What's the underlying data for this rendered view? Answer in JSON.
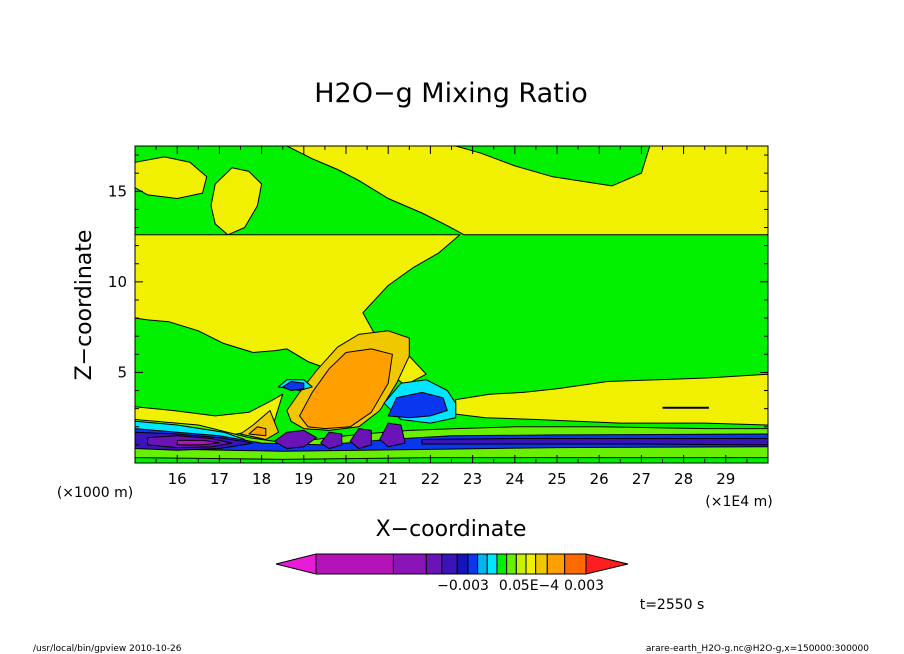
{
  "chart_data": {
    "type": "heatmap",
    "title": "H2O−g Mixing Ratio",
    "xlabel": "X−coordinate",
    "ylabel": "Z−coordinate",
    "x_unit_note": "(×1E4 m)",
    "y_unit_note": "(×1000 m)",
    "x_ticks": [
      16,
      17,
      18,
      19,
      20,
      21,
      22,
      23,
      24,
      25,
      26,
      27,
      28,
      29
    ],
    "y_ticks": [
      5,
      10,
      15
    ],
    "xlim": [
      15.0,
      30.0
    ],
    "ylim": [
      0.0,
      17.5
    ],
    "regions": [
      {
        "name": "background",
        "level": "green",
        "poly": [
          [
            15,
            0
          ],
          [
            30,
            0
          ],
          [
            30,
            17.5
          ],
          [
            15,
            17.5
          ]
        ]
      },
      {
        "name": "upper-left-yellow",
        "level": "yellow",
        "poly": [
          [
            15,
            16.6
          ],
          [
            15.7,
            16.9
          ],
          [
            16.3,
            16.6
          ],
          [
            16.7,
            15.8
          ],
          [
            16.6,
            14.9
          ],
          [
            16,
            14.6
          ],
          [
            15.3,
            14.8
          ],
          [
            15,
            15.2
          ]
        ]
      },
      {
        "name": "top-yellow-plume",
        "level": "yellow",
        "poly": [
          [
            18.6,
            17.5
          ],
          [
            19.2,
            16.8
          ],
          [
            19.8,
            16.2
          ],
          [
            20.3,
            15.6
          ],
          [
            21.0,
            14.6
          ],
          [
            21.8,
            13.8
          ],
          [
            22.4,
            13.1
          ],
          [
            22.8,
            12.6
          ],
          [
            30,
            12.6
          ],
          [
            30,
            17.5
          ],
          [
            27.2,
            17.5
          ],
          [
            27.0,
            16.0
          ],
          [
            26.3,
            15.3
          ],
          [
            24.9,
            15.8
          ],
          [
            24.0,
            16.4
          ],
          [
            23.2,
            17.1
          ],
          [
            22.6,
            17.5
          ]
        ]
      },
      {
        "name": "upper-yellow-blob",
        "level": "yellow",
        "poly": [
          [
            17.2,
            12.6
          ],
          [
            17.6,
            13.0
          ],
          [
            17.9,
            14.2
          ],
          [
            18.0,
            15.4
          ],
          [
            17.7,
            16.1
          ],
          [
            17.3,
            16.3
          ],
          [
            16.9,
            15.4
          ],
          [
            16.8,
            14.2
          ],
          [
            16.9,
            13.2
          ]
        ]
      },
      {
        "name": "main-yellow-band",
        "level": "yellow",
        "poly": [
          [
            15,
            12.6
          ],
          [
            22.7,
            12.6
          ],
          [
            22.2,
            11.6
          ],
          [
            21.6,
            10.8
          ],
          [
            21.0,
            9.8
          ],
          [
            20.4,
            8.3
          ],
          [
            20.8,
            6.6
          ],
          [
            21.5,
            5.9
          ],
          [
            21.9,
            4.9
          ],
          [
            21.4,
            4.3
          ],
          [
            21.0,
            5.0
          ],
          [
            20.4,
            4.8
          ],
          [
            19.8,
            5.0
          ],
          [
            19.1,
            5.6
          ],
          [
            18.6,
            6.3
          ],
          [
            18.3,
            6.2
          ],
          [
            17.8,
            6.1
          ],
          [
            17.1,
            6.6
          ],
          [
            16.5,
            7.3
          ],
          [
            15.8,
            7.8
          ],
          [
            15.3,
            7.9
          ],
          [
            15,
            8.0
          ]
        ]
      },
      {
        "name": "lower-left-yellow",
        "level": "yellow",
        "poly": [
          [
            15,
            3.1
          ],
          [
            15.9,
            2.9
          ],
          [
            16.9,
            2.6
          ],
          [
            17.7,
            2.8
          ],
          [
            18.2,
            3.4
          ],
          [
            18.5,
            3.8
          ],
          [
            18.3,
            2.3
          ],
          [
            17.9,
            1.8
          ],
          [
            17.4,
            1.6
          ],
          [
            16.7,
            1.5
          ],
          [
            15.7,
            1.6
          ],
          [
            15,
            1.8
          ]
        ]
      },
      {
        "name": "right-yellow-layer",
        "level": "yellow",
        "poly": [
          [
            22.6,
            2.7
          ],
          [
            22.6,
            3.5
          ],
          [
            23.4,
            3.8
          ],
          [
            24.2,
            3.9
          ],
          [
            25.0,
            4.1
          ],
          [
            26.2,
            4.5
          ],
          [
            27.4,
            4.6
          ],
          [
            28.6,
            4.7
          ],
          [
            30,
            4.9
          ],
          [
            30,
            2.1
          ],
          [
            28.5,
            2.2
          ],
          [
            26.5,
            2.2
          ],
          [
            24.5,
            2.4
          ],
          [
            23.3,
            2.5
          ]
        ]
      },
      {
        "name": "gold-plume",
        "level": "gold",
        "poly": [
          [
            18.6,
            2.9
          ],
          [
            18.9,
            3.9
          ],
          [
            19.3,
            5.1
          ],
          [
            19.8,
            6.4
          ],
          [
            20.3,
            7.1
          ],
          [
            21.0,
            7.3
          ],
          [
            21.5,
            6.9
          ],
          [
            21.5,
            5.9
          ],
          [
            21.2,
            4.4
          ],
          [
            20.8,
            2.9
          ],
          [
            20.3,
            2.0
          ],
          [
            19.6,
            1.8
          ],
          [
            19.0,
            1.9
          ],
          [
            18.7,
            2.3
          ]
        ]
      },
      {
        "name": "orange-plume",
        "level": "orange",
        "poly": [
          [
            18.9,
            2.6
          ],
          [
            19.2,
            3.9
          ],
          [
            19.6,
            5.2
          ],
          [
            20.0,
            6.1
          ],
          [
            20.6,
            6.3
          ],
          [
            21.1,
            6.0
          ],
          [
            21.0,
            4.4
          ],
          [
            20.6,
            2.8
          ],
          [
            20.1,
            2.0
          ],
          [
            19.5,
            1.9
          ],
          [
            19.1,
            2.0
          ]
        ]
      },
      {
        "name": "left-gold",
        "level": "gold",
        "poly": [
          [
            17.5,
            1.6
          ],
          [
            17.8,
            2.1
          ],
          [
            18.2,
            2.9
          ],
          [
            18.4,
            1.7
          ],
          [
            18.1,
            1.3
          ]
        ]
      },
      {
        "name": "left-orange",
        "level": "orange",
        "poly": [
          [
            17.7,
            1.6
          ],
          [
            17.9,
            2.0
          ],
          [
            18.1,
            1.9
          ],
          [
            18.1,
            1.5
          ]
        ]
      },
      {
        "name": "light-green-band",
        "level": "lightgreen",
        "poly": [
          [
            15,
            2.4
          ],
          [
            16.5,
            2.1
          ],
          [
            17.7,
            1.4
          ],
          [
            18.6,
            1.1
          ],
          [
            19.6,
            1.4
          ],
          [
            20.4,
            1.6
          ],
          [
            21.5,
            1.8
          ],
          [
            22.6,
            1.9
          ],
          [
            24.0,
            2.0
          ],
          [
            26.0,
            2.0
          ],
          [
            28.5,
            1.9
          ],
          [
            30,
            1.9
          ],
          [
            30,
            0.3
          ],
          [
            22.0,
            0.3
          ],
          [
            18.5,
            0.2
          ],
          [
            15,
            0.3
          ]
        ]
      },
      {
        "name": "cyan-left",
        "level": "cyan",
        "poly": [
          [
            15,
            2.3
          ],
          [
            16.0,
            2.1
          ],
          [
            17.1,
            1.7
          ],
          [
            17.6,
            1.3
          ],
          [
            17.0,
            0.9
          ],
          [
            16.0,
            0.8
          ],
          [
            15,
            0.9
          ]
        ]
      },
      {
        "name": "cyan-right",
        "level": "cyan",
        "poly": [
          [
            20.9,
            3.3
          ],
          [
            21.3,
            4.4
          ],
          [
            21.9,
            4.6
          ],
          [
            22.4,
            4.0
          ],
          [
            22.6,
            3.3
          ],
          [
            22.6,
            2.5
          ],
          [
            22.0,
            2.2
          ],
          [
            21.3,
            2.4
          ]
        ]
      },
      {
        "name": "blue-right",
        "level": "blue",
        "poly": [
          [
            21.0,
            2.6
          ],
          [
            21.2,
            3.6
          ],
          [
            21.8,
            3.9
          ],
          [
            22.3,
            3.6
          ],
          [
            22.4,
            2.9
          ],
          [
            22.0,
            2.6
          ],
          [
            21.5,
            2.5
          ]
        ]
      },
      {
        "name": "cyan-small",
        "level": "cyan",
        "poly": [
          [
            18.4,
            4.2
          ],
          [
            18.6,
            4.6
          ],
          [
            19.0,
            4.6
          ],
          [
            19.2,
            4.2
          ],
          [
            18.9,
            4.0
          ]
        ]
      },
      {
        "name": "blue-small",
        "level": "blue",
        "poly": [
          [
            18.5,
            4.2
          ],
          [
            18.7,
            4.5
          ],
          [
            19.0,
            4.4
          ],
          [
            19.0,
            4.1
          ],
          [
            18.7,
            4.0
          ]
        ]
      },
      {
        "name": "blue-lower-band",
        "level": "blue",
        "poly": [
          [
            15,
            1.9
          ],
          [
            16.0,
            1.7
          ],
          [
            17.0,
            1.5
          ],
          [
            18.0,
            1.1
          ],
          [
            19.5,
            1.0
          ],
          [
            21.0,
            1.3
          ],
          [
            22.5,
            1.5
          ],
          [
            25.0,
            1.55
          ],
          [
            30,
            1.6
          ],
          [
            30,
            0.9
          ],
          [
            25.0,
            0.85
          ],
          [
            22.0,
            0.75
          ],
          [
            18.5,
            0.65
          ],
          [
            15,
            0.8
          ]
        ]
      },
      {
        "name": "indigo-left",
        "level": "indigo",
        "poly": [
          [
            15,
            1.7
          ],
          [
            16.0,
            1.6
          ],
          [
            17.0,
            1.4
          ],
          [
            17.8,
            1.1
          ],
          [
            17.0,
            0.8
          ],
          [
            16.0,
            0.7
          ],
          [
            15,
            0.8
          ]
        ]
      },
      {
        "name": "indigo-right",
        "level": "indigo",
        "poly": [
          [
            21.8,
            1.3
          ],
          [
            24.0,
            1.35
          ],
          [
            27.0,
            1.35
          ],
          [
            30,
            1.35
          ],
          [
            30,
            1.0
          ],
          [
            27.0,
            1.05
          ],
          [
            24.0,
            1.05
          ],
          [
            21.8,
            1.05
          ]
        ]
      },
      {
        "name": "violet-left",
        "level": "violet",
        "poly": [
          [
            15.3,
            1.4
          ],
          [
            16.0,
            1.5
          ],
          [
            16.8,
            1.35
          ],
          [
            17.3,
            1.1
          ],
          [
            16.8,
            0.9
          ],
          [
            16.0,
            0.85
          ],
          [
            15.3,
            1.0
          ]
        ]
      },
      {
        "name": "magenta-left",
        "level": "magenta",
        "poly": [
          [
            16.0,
            1.25
          ],
          [
            16.6,
            1.25
          ],
          [
            17.0,
            1.12
          ],
          [
            16.6,
            1.0
          ],
          [
            16.0,
            1.0
          ]
        ]
      },
      {
        "name": "violet-eye-1",
        "level": "violet",
        "poly": [
          [
            18.3,
            1.2
          ],
          [
            18.6,
            1.7
          ],
          [
            19.0,
            1.8
          ],
          [
            19.3,
            1.4
          ],
          [
            19.0,
            0.9
          ],
          [
            18.6,
            0.8
          ]
        ]
      },
      {
        "name": "violet-eye-2",
        "level": "violet",
        "poly": [
          [
            19.4,
            1.1
          ],
          [
            19.6,
            1.7
          ],
          [
            19.9,
            1.6
          ],
          [
            19.9,
            1.0
          ],
          [
            19.6,
            0.8
          ]
        ]
      },
      {
        "name": "violet-eye-3",
        "level": "violet",
        "poly": [
          [
            20.1,
            1.2
          ],
          [
            20.3,
            1.9
          ],
          [
            20.6,
            1.8
          ],
          [
            20.6,
            1.0
          ],
          [
            20.3,
            0.8
          ]
        ]
      },
      {
        "name": "violet-eye-4",
        "level": "violet",
        "poly": [
          [
            20.8,
            1.3
          ],
          [
            21.0,
            2.2
          ],
          [
            21.3,
            2.1
          ],
          [
            21.4,
            1.1
          ],
          [
            21.0,
            0.9
          ]
        ]
      },
      {
        "name": "white-line",
        "level": "white",
        "poly": [
          [
            27.5,
            3.0
          ],
          [
            28.6,
            3.0
          ],
          [
            28.6,
            3.1
          ],
          [
            27.5,
            3.1
          ]
        ]
      }
    ],
    "colorbar": {
      "labels": [
        "−0.003",
        "0.0",
        "5E−4",
        "0.003"
      ],
      "colors": [
        "#e81cd6",
        "#b413b8",
        "#8a14b8",
        "#6a14b8",
        "#3a14b8",
        "#1414b8",
        "#0a36f0",
        "#00b4f0",
        "#00e6ff",
        "#00f000",
        "#68f000",
        "#c8f000",
        "#f0f000",
        "#f0c800",
        "#ffa000",
        "#ff6a00",
        "#ff1e1e"
      ]
    }
  },
  "time_label": "t=2550 s",
  "footer_left": "/usr/local/bin/gpview   2010-10-26",
  "footer_right": "arare-earth_H2O-g.nc@H2O-g,x=150000:300000"
}
